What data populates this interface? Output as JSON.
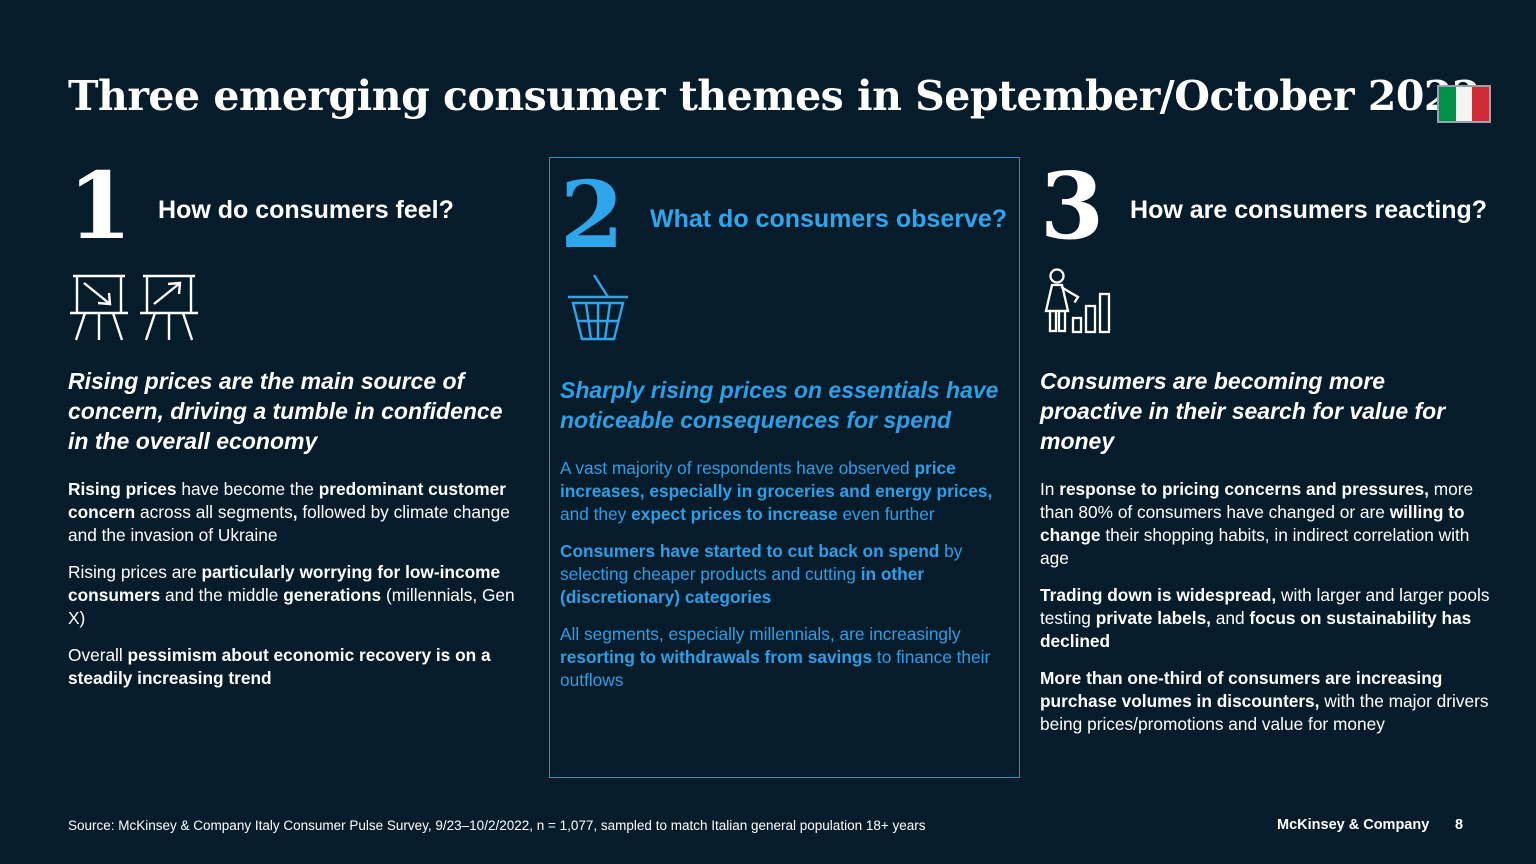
{
  "slide": {
    "title": "Three emerging consumer themes in September/October 2022",
    "source": "Source: McKinsey & Company Italy Consumer Pulse Survey, 9/23–10/2/2022, n = 1,077, sampled to match Italian general population 18+ years",
    "brand": "McKinsey & Company",
    "page_number": "8"
  },
  "colors": {
    "background": "#061C2B",
    "accent_blue": "#2FA5EC",
    "box_border": "#2C91CC",
    "text_white": "#FFFFFF",
    "flag_green": "#009246",
    "flag_white": "#F4F5F0",
    "flag_red": "#CE2B37"
  },
  "flag": {
    "name": "italy-flag",
    "stripes": [
      "#009246",
      "#F4F5F0",
      "#CE2B37"
    ]
  },
  "columns": [
    {
      "number": "1",
      "question": "How do consumers feel?",
      "icons": [
        "presentation-board-declining-icon",
        "presentation-board-rising-icon"
      ],
      "headline": "Rising prices are the main source of concern, driving a tumble in confidence in the overall economy",
      "paragraphs": [
        [
          {
            "t": "Rising prices",
            "b": true
          },
          {
            "t": " have become the "
          },
          {
            "t": "predominant customer concern",
            "b": true
          },
          {
            "t": " across all segments"
          },
          {
            "t": ",",
            "b": true
          },
          {
            "t": " followed by climate change and the invasion of Ukraine"
          }
        ],
        [
          {
            "t": "Rising prices are "
          },
          {
            "t": "particularly worrying for low-income consumers",
            "b": true
          },
          {
            "t": " and the middle "
          },
          {
            "t": "generations",
            "b": true
          },
          {
            "t": " (millennials, Gen X)"
          }
        ],
        [
          {
            "t": "Overall "
          },
          {
            "t": "pessimism about economic recovery is on a steadily increasing trend",
            "b": true
          }
        ]
      ]
    },
    {
      "number": "2",
      "question": "What do consumers observe?",
      "icons": [
        "shopping-basket-icon"
      ],
      "headline": "Sharply rising prices on essentials have noticeable consequences for spend",
      "paragraphs": [
        [
          {
            "t": "A vast majority of respondents have observed "
          },
          {
            "t": "price increases, especially in groceries and energy prices,",
            "b": true
          },
          {
            "t": " and they "
          },
          {
            "t": "expect prices to increase",
            "b": true
          },
          {
            "t": " even further"
          }
        ],
        [
          {
            "t": "Consumers have started to cut back on spend",
            "b": true
          },
          {
            "t": " by selecting cheaper products and cutting "
          },
          {
            "t": "in other (discretionary) categories",
            "b": true
          }
        ],
        [
          {
            "t": "All segments, especially millennials, are increasingly "
          },
          {
            "t": "resorting to withdrawals from savings",
            "b": true
          },
          {
            "t": " to finance their outflows"
          }
        ]
      ]
    },
    {
      "number": "3",
      "question": "How are consumers reacting?",
      "icons": [
        "person-with-bar-chart-icon"
      ],
      "headline": "Consumers are becoming more proactive in their search for value for money",
      "paragraphs": [
        [
          {
            "t": "In "
          },
          {
            "t": "response to pricing concerns and pressures,",
            "b": true
          },
          {
            "t": " more than 80% of consumers have changed or are "
          },
          {
            "t": "willing to change",
            "b": true
          },
          {
            "t": " their shopping habits, in indirect correlation with age"
          }
        ],
        [
          {
            "t": "Trading down is widespread,",
            "b": true
          },
          {
            "t": " with larger and larger pools testing "
          },
          {
            "t": "private labels,",
            "b": true
          },
          {
            "t": " and "
          },
          {
            "t": "focus on sustainability has declined",
            "b": true
          }
        ],
        [
          {
            "t": "More than one-third of consumers are increasing purchase volumes in discounters,",
            "b": true
          },
          {
            "t": " with the major drivers being prices/promotions and value for money"
          }
        ]
      ]
    }
  ]
}
